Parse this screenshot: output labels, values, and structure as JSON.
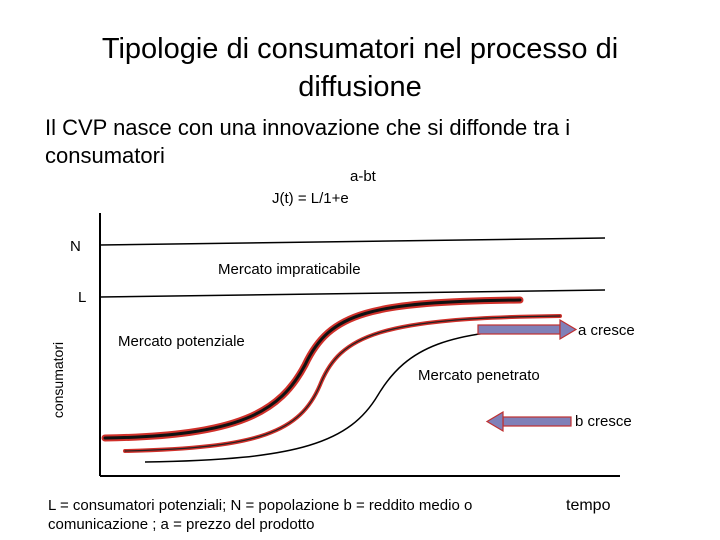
{
  "title": "Tipologie di consumatori nel processo di diffusione",
  "subtitle": "Il CVP nasce con una innovazione che si diffonde tra i consumatori",
  "formula": {
    "exponent": "a-bt",
    "equation": "J(t) = L/1+e"
  },
  "diagram": {
    "y_axis_label": "consumatori",
    "x_axis_label": "tempo",
    "level_n": "N",
    "level_l": "L",
    "region_impracticable": "Mercato impraticabile",
    "region_potential": "Mercato potenziale",
    "region_penetrated": "Mercato penetrato",
    "arrow_a": "a cresce",
    "arrow_b": "b cresce",
    "arrow_color": "#8080b8",
    "curve_highlight_color": "#d0302a"
  },
  "legend": "L = consumatori potenziali;  N = popolazione b = reddito medio o comunicazione ; a = prezzo del prodotto"
}
